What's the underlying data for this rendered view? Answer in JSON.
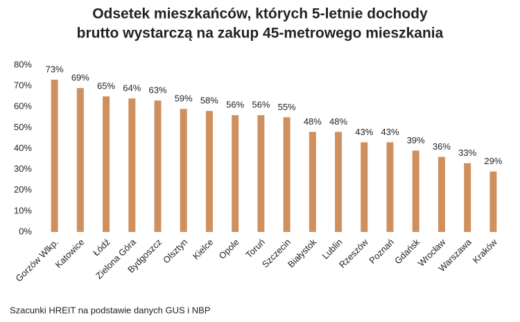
{
  "chart_data": {
    "type": "bar",
    "title": [
      "Odsetek mieszkańców, których 5-letnie dochody",
      "brutto wystarczą na zakup 45-metrowego mieszkania"
    ],
    "categories": [
      "Gorzów Wlkp.",
      "Katowice",
      "Łódź",
      "Zielona Góra",
      "Bydgoszcz",
      "Olsztyn",
      "Kielce",
      "Opole",
      "Toruń",
      "Szczecin",
      "Białystok",
      "Lublin",
      "Rzeszów",
      "Poznań",
      "Gdańsk",
      "Wrocław",
      "Warszawa",
      "Kraków"
    ],
    "values": [
      73,
      69,
      65,
      64,
      63,
      59,
      58,
      56,
      56,
      55,
      48,
      48,
      43,
      43,
      39,
      36,
      33,
      29
    ],
    "value_labels": [
      "73%",
      "69%",
      "65%",
      "64%",
      "63%",
      "59%",
      "58%",
      "56%",
      "56%",
      "55%",
      "48%",
      "48%",
      "43%",
      "43%",
      "39%",
      "36%",
      "33%",
      "29%"
    ],
    "color": "#d0905e",
    "ylim": [
      0,
      80
    ],
    "yticks": [
      {
        "value": 0,
        "label": "0%"
      },
      {
        "value": 10,
        "label": "10%"
      },
      {
        "value": 20,
        "label": "20%"
      },
      {
        "value": 30,
        "label": "30%"
      },
      {
        "value": 40,
        "label": "40%"
      },
      {
        "value": 50,
        "label": "50%"
      },
      {
        "value": 60,
        "label": "60%"
      },
      {
        "value": 70,
        "label": "70%"
      },
      {
        "value": 80,
        "label": "80%"
      }
    ],
    "grid": false,
    "source": "Szacunki HREIT na podstawie danych GUS i NBP"
  }
}
